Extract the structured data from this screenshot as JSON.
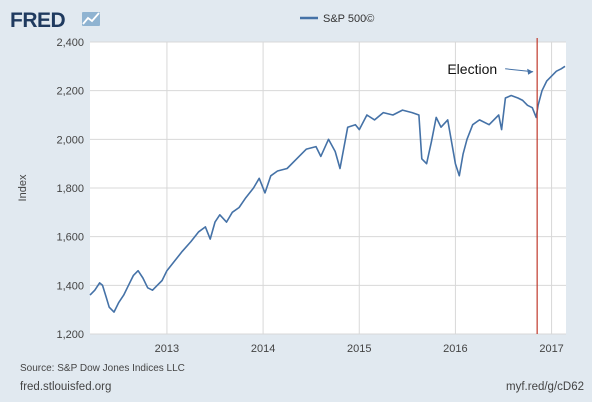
{
  "brand": {
    "name": "FRED"
  },
  "legend": {
    "label": "S&P 500©"
  },
  "footer": {
    "source": "Source: S&P Dow Jones Indices LLC",
    "site": "fred.stlouisfed.org",
    "shortlink": "myf.red/g/cD62"
  },
  "colors": {
    "series": "#4572a7",
    "election_line": "#c0392b",
    "background": "#e1e9f0",
    "plot_bg": "#ffffff",
    "logo": "#1f3a5f"
  },
  "chart_data": {
    "type": "line",
    "title": "",
    "xlabel": "",
    "ylabel": "Index",
    "xlim": [
      2012.2,
      2017.15
    ],
    "ylim": [
      1200,
      2400
    ],
    "yticks": [
      1200,
      1400,
      1600,
      1800,
      2000,
      2200,
      2400
    ],
    "ytick_labels": [
      "1,200",
      "1,400",
      "1,600",
      "1,800",
      "2,000",
      "2,200",
      "2,400"
    ],
    "xticks": [
      2013,
      2014,
      2015,
      2016,
      2017
    ],
    "xtick_labels": [
      "2013",
      "2014",
      "2015",
      "2016",
      "2017"
    ],
    "grid": true,
    "legend_position": "top-center",
    "series": [
      {
        "name": "S&P 500©",
        "x": [
          2012.2,
          2012.25,
          2012.3,
          2012.33,
          2012.37,
          2012.4,
          2012.45,
          2012.5,
          2012.55,
          2012.6,
          2012.65,
          2012.7,
          2012.75,
          2012.8,
          2012.85,
          2012.9,
          2012.95,
          2013.0,
          2013.08,
          2013.16,
          2013.25,
          2013.33,
          2013.4,
          2013.45,
          2013.5,
          2013.55,
          2013.62,
          2013.68,
          2013.75,
          2013.82,
          2013.9,
          2013.96,
          2014.02,
          2014.08,
          2014.15,
          2014.25,
          2014.35,
          2014.45,
          2014.55,
          2014.6,
          2014.68,
          2014.75,
          2014.8,
          2014.88,
          2014.96,
          2015.0,
          2015.08,
          2015.16,
          2015.25,
          2015.35,
          2015.45,
          2015.55,
          2015.62,
          2015.65,
          2015.7,
          2015.75,
          2015.8,
          2015.85,
          2015.92,
          2016.0,
          2016.04,
          2016.08,
          2016.12,
          2016.18,
          2016.25,
          2016.35,
          2016.45,
          2016.48,
          2016.52,
          2016.58,
          2016.65,
          2016.7,
          2016.75,
          2016.8,
          2016.84,
          2016.86,
          2016.9,
          2016.95,
          2017.0,
          2017.05,
          2017.1,
          2017.14
        ],
        "values": [
          1360,
          1380,
          1410,
          1400,
          1350,
          1310,
          1290,
          1330,
          1360,
          1400,
          1440,
          1460,
          1430,
          1390,
          1380,
          1400,
          1420,
          1460,
          1500,
          1540,
          1580,
          1620,
          1640,
          1590,
          1660,
          1690,
          1660,
          1700,
          1720,
          1760,
          1800,
          1840,
          1780,
          1850,
          1870,
          1880,
          1920,
          1960,
          1970,
          1930,
          2000,
          1950,
          1880,
          2050,
          2060,
          2040,
          2100,
          2080,
          2110,
          2100,
          2120,
          2110,
          2100,
          1920,
          1900,
          1990,
          2090,
          2050,
          2080,
          1900,
          1850,
          1940,
          2000,
          2060,
          2080,
          2060,
          2100,
          2040,
          2170,
          2180,
          2170,
          2160,
          2140,
          2130,
          2090,
          2140,
          2200,
          2240,
          2260,
          2280,
          2290,
          2300
        ]
      }
    ],
    "annotations": [
      {
        "text": "Election",
        "x": 2016.85,
        "y": 2290,
        "vline_x": 2016.85
      }
    ]
  }
}
